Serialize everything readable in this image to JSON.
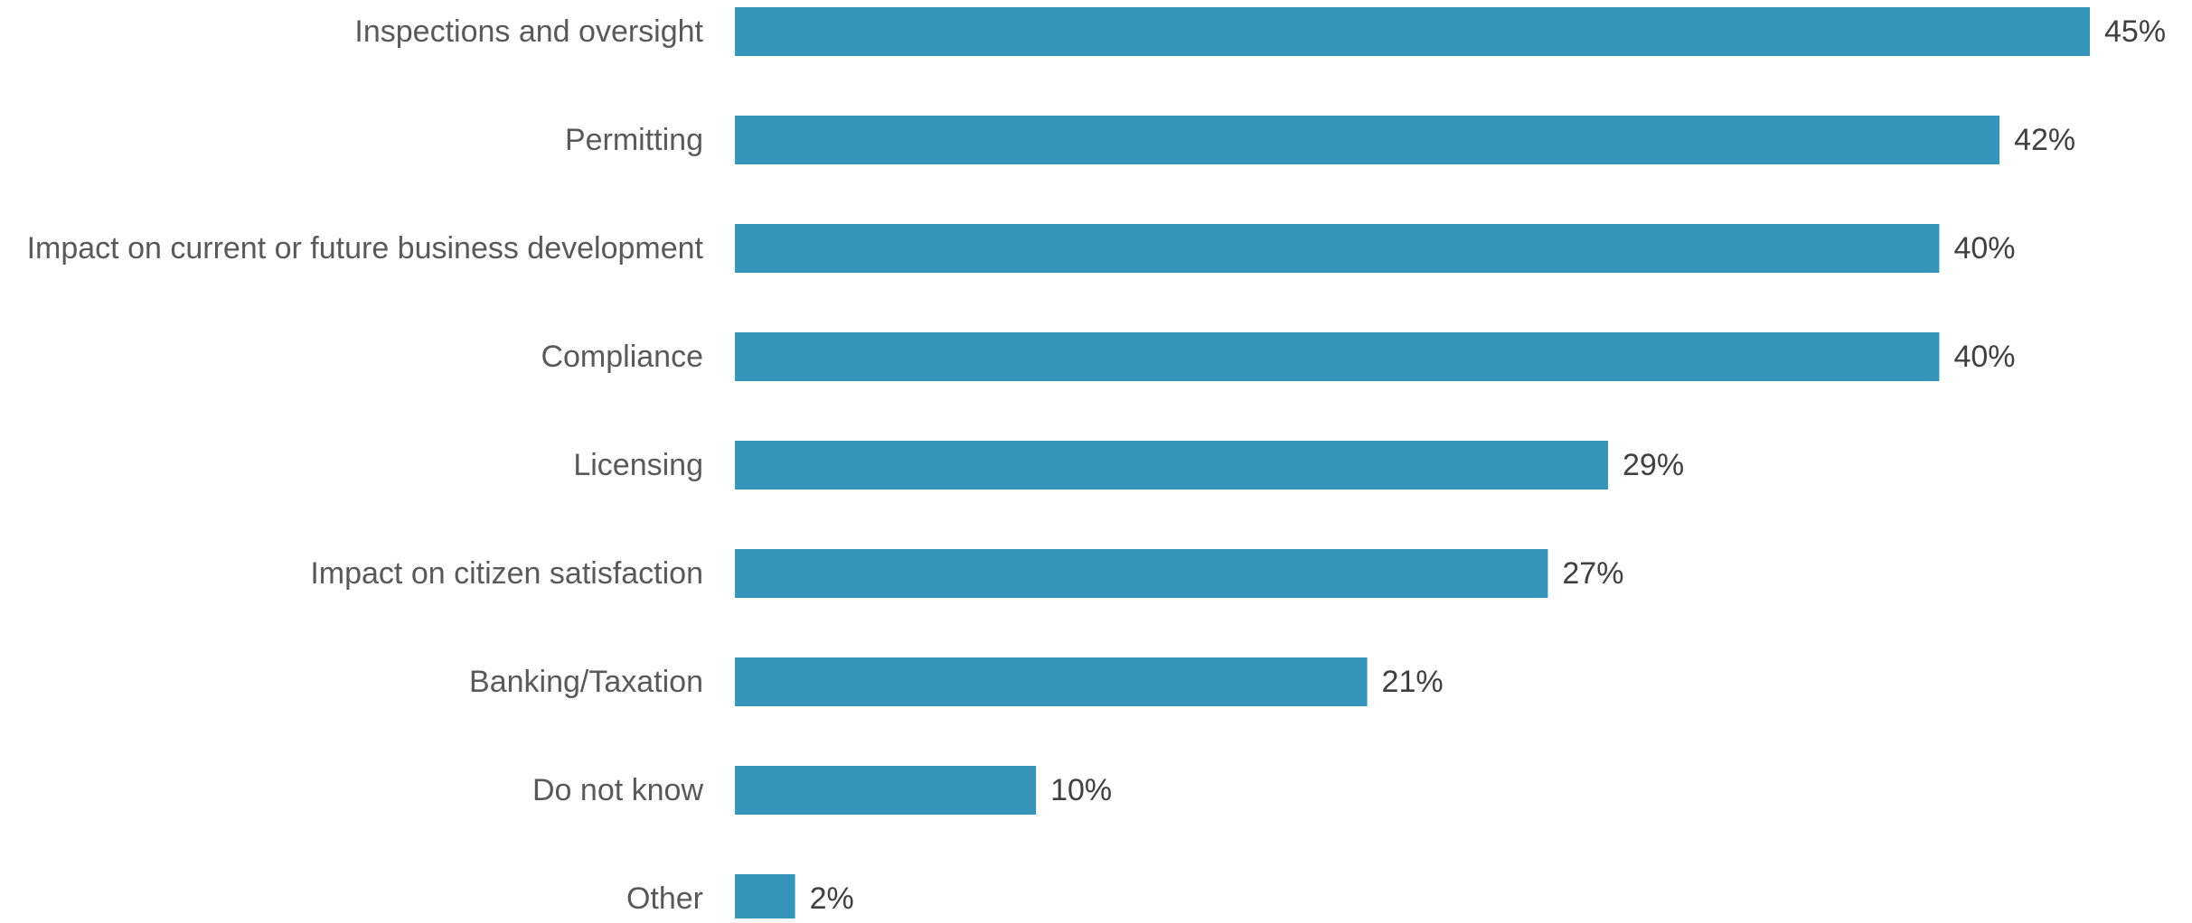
{
  "chart_data": {
    "type": "bar",
    "orientation": "horizontal",
    "categories": [
      "Inspections and oversight",
      "Permitting",
      "Impact on current or future business development",
      "Compliance",
      "Licensing",
      "Impact on citizen satisfaction",
      "Banking/Taxation",
      "Do not know",
      "Other"
    ],
    "values": [
      45,
      42,
      40,
      40,
      29,
      27,
      21,
      10,
      2
    ],
    "data_labels": [
      "45%",
      "42%",
      "40%",
      "40%",
      "29%",
      "27%",
      "21%",
      "10%",
      "2%"
    ],
    "title": "",
    "xlabel": "",
    "ylabel": "",
    "xlim": [
      0,
      45
    ],
    "grid": false,
    "legend": "none",
    "colors": {
      "bar": "#3595BB",
      "category_label": "#595959",
      "data_label": "#404040"
    }
  }
}
